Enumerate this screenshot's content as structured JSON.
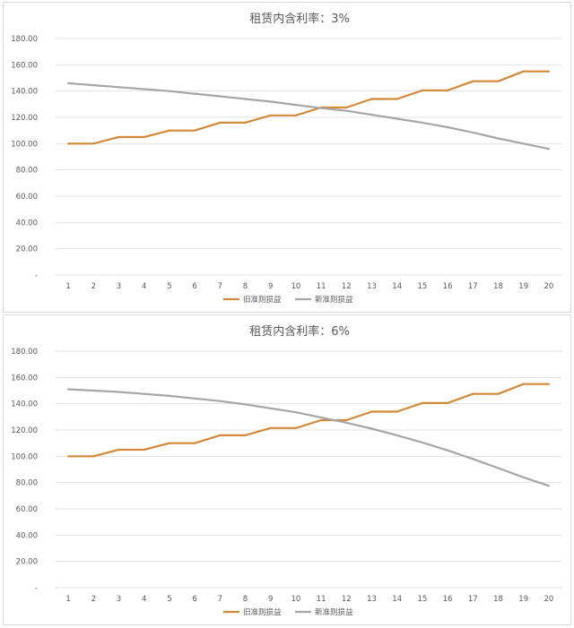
{
  "chart_data": [
    {
      "type": "line",
      "title": "租赁内含利率：3%",
      "x": [
        1,
        2,
        3,
        4,
        5,
        6,
        7,
        8,
        9,
        10,
        11,
        12,
        13,
        14,
        15,
        16,
        17,
        18,
        19,
        20
      ],
      "ylim": [
        0,
        180
      ],
      "yticks": [
        "-",
        "20.00",
        "40.00",
        "60.00",
        "80.00",
        "100.00",
        "120.00",
        "140.00",
        "160.00",
        "180.00"
      ],
      "ytick_values": [
        0,
        20,
        40,
        60,
        80,
        100,
        120,
        140,
        160,
        180
      ],
      "grid": true,
      "legend_position": "bottom",
      "series": [
        {
          "name": "旧准则损益",
          "color": "#D4893A",
          "values": [
            100,
            100,
            105,
            105,
            110,
            110,
            116,
            116,
            121.5,
            121.5,
            127.5,
            127.5,
            134,
            134,
            140.5,
            140.5,
            147.5,
            147.5,
            155,
            155
          ]
        },
        {
          "name": "新准则损益",
          "color": "#A6A6A6",
          "values": [
            146,
            144.5,
            143,
            141.5,
            140,
            138,
            136,
            134,
            132,
            129.5,
            127,
            125,
            122,
            119,
            116,
            112.5,
            108.5,
            104,
            100,
            96
          ]
        }
      ]
    },
    {
      "type": "line",
      "title": "租赁内含利率：6%",
      "x": [
        1,
        2,
        3,
        4,
        5,
        6,
        7,
        8,
        9,
        10,
        11,
        12,
        13,
        14,
        15,
        16,
        17,
        18,
        19,
        20
      ],
      "ylim": [
        0,
        180
      ],
      "yticks": [
        "-",
        "20.00",
        "40.00",
        "60.00",
        "80.00",
        "100.00",
        "120.00",
        "140.00",
        "160.00",
        "180.00"
      ],
      "ytick_values": [
        0,
        20,
        40,
        60,
        80,
        100,
        120,
        140,
        160,
        180
      ],
      "grid": true,
      "legend_position": "bottom",
      "series": [
        {
          "name": "旧准则损益",
          "color": "#D4893A",
          "values": [
            100,
            100,
            105,
            105,
            110,
            110,
            116,
            116,
            121.5,
            121.5,
            127.5,
            127.5,
            134,
            134,
            140.5,
            140.5,
            147.5,
            147.5,
            155,
            155
          ]
        },
        {
          "name": "新准则损益",
          "color": "#A6A6A6",
          "values": [
            151,
            150,
            149,
            147.5,
            146,
            144,
            142,
            139.5,
            136.5,
            133.5,
            129.5,
            125.5,
            121,
            116,
            110.5,
            104.5,
            98,
            91,
            84,
            77.5
          ]
        }
      ]
    }
  ]
}
